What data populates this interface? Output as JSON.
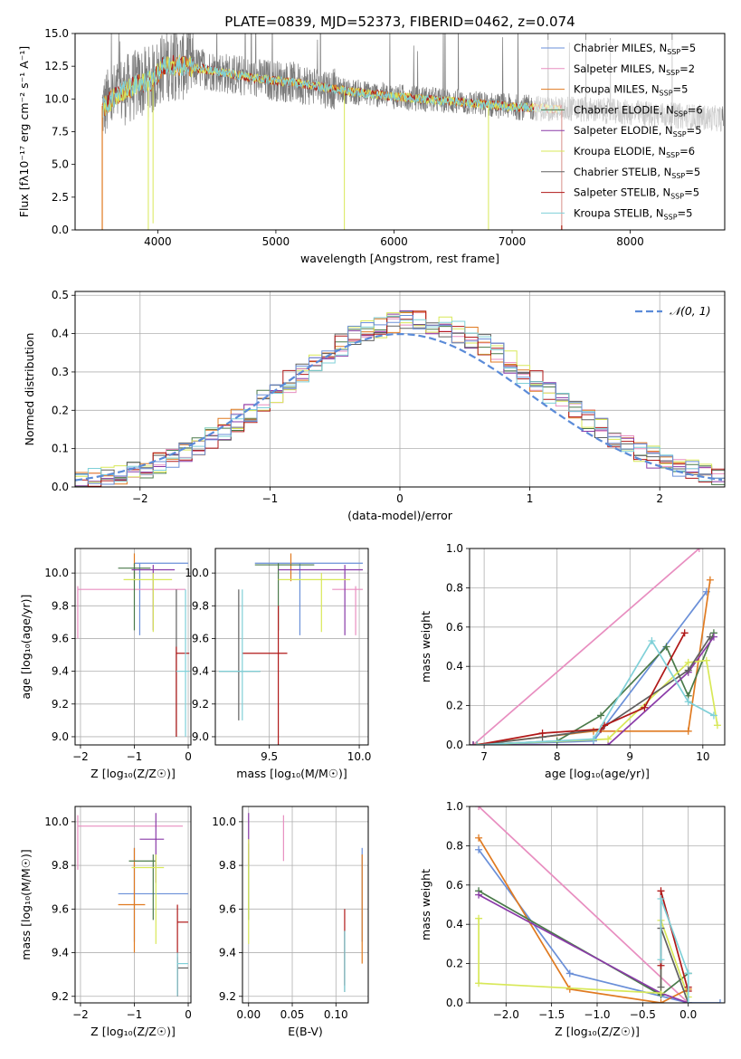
{
  "colors": [
    "#6a8fd8",
    "#e88ec0",
    "#e07a20",
    "#4a7a4a",
    "#8a3aa8",
    "#d8e858",
    "#606060",
    "#b01818",
    "#7fd0d8"
  ],
  "legend": [
    {
      "base": "Chabrier MILES, N",
      "sub": "SSP",
      "tail": "=5"
    },
    {
      "base": "Salpeter MILES, N",
      "sub": "SSP",
      "tail": "=2"
    },
    {
      "base": "Kroupa MILES, N",
      "sub": "SSP",
      "tail": "=5"
    },
    {
      "base": "Chabrier ELODIE, N",
      "sub": "SSP",
      "tail": "=6"
    },
    {
      "base": "Salpeter ELODIE, N",
      "sub": "SSP",
      "tail": "=5"
    },
    {
      "base": "Kroupa ELODIE, N",
      "sub": "SSP",
      "tail": "=6"
    },
    {
      "base": "Chabrier STELIB, N",
      "sub": "SSP",
      "tail": "=5"
    },
    {
      "base": "Salpeter STELIB, N",
      "sub": "SSP",
      "tail": "=5"
    },
    {
      "base": "Kroupa STELIB, N",
      "sub": "SSP",
      "tail": "=5"
    }
  ],
  "chart_data": [
    {
      "id": "spectrum",
      "type": "line",
      "title": "PLATE=0839, MJD=52373, FIBERID=0462, z=0.074",
      "xlabel": "wavelength [Angstrom, rest frame]",
      "ylabel": "Flux [fλ10⁻¹⁷ erg cm⁻² s⁻¹ A⁻¹]",
      "xlim": [
        3300,
        8800
      ],
      "ylim": [
        0,
        15
      ],
      "xticks": [
        4000,
        5000,
        6000,
        7000,
        8000
      ],
      "xticklabels": [
        "4000",
        "5000",
        "6000",
        "7000",
        "8000"
      ],
      "yticks": [
        0,
        2.5,
        5,
        7.5,
        10,
        12.5,
        15
      ],
      "yticklabels": [
        "0.0",
        "2.5",
        "5.0",
        "7.5",
        "10.0",
        "12.5",
        "15.0"
      ],
      "continuum": [
        [
          3530,
          9.3
        ],
        [
          3700,
          10.6
        ],
        [
          3850,
          11.2
        ],
        [
          3950,
          11.4
        ],
        [
          4050,
          12.5
        ],
        [
          4200,
          12.6
        ],
        [
          4500,
          12.1
        ],
        [
          4800,
          11.6
        ],
        [
          5200,
          11.2
        ],
        [
          5600,
          10.6
        ],
        [
          6000,
          10.2
        ],
        [
          6500,
          9.8
        ],
        [
          7000,
          9.4
        ],
        [
          7420,
          9.2
        ]
      ],
      "spikes": [
        [
          3920,
          0
        ],
        [
          3960,
          0.5
        ],
        [
          5580,
          0
        ],
        [
          6800,
          0
        ],
        [
          7420,
          0
        ]
      ],
      "data_range": [
        3530,
        8790
      ]
    },
    {
      "id": "residuals",
      "type": "bar",
      "xlabel": "(data-model)/error",
      "ylabel": "Normed distribution",
      "xlim": [
        -2.5,
        2.5
      ],
      "ylim": [
        0,
        0.51
      ],
      "xticks": [
        -2,
        -1,
        0,
        1,
        2
      ],
      "xticklabels": [
        "−2",
        "−1",
        "0",
        "1",
        "2"
      ],
      "yticks": [
        0,
        0.1,
        0.2,
        0.3,
        0.4,
        0.5
      ],
      "yticklabels": [
        "0.0",
        "0.1",
        "0.2",
        "0.3",
        "0.4",
        "0.5"
      ],
      "bin_width": 0.1,
      "bin_edges_from": -2.5,
      "gaussian": {
        "label": "𝒩(0, 1)",
        "color": "#5b8bd8"
      }
    },
    {
      "id": "age_vs_Z",
      "type": "scatter",
      "xlabel": "Z [log₁₀(Z/Z☉)]",
      "ylabel": "age  [log₁₀(age/yr)]",
      "xlim": [
        -2.1,
        0.05
      ],
      "ylim": [
        8.95,
        10.15
      ],
      "xticks": [
        -2,
        -1,
        0
      ],
      "xticklabels": [
        "−2",
        "−1",
        "0"
      ],
      "yticks": [
        9.0,
        9.2,
        9.4,
        9.6,
        9.8,
        10.0
      ],
      "yticklabels": [
        "9.0",
        "9.2",
        "9.4",
        "9.6",
        "9.8",
        "10.0"
      ],
      "points": [
        {
          "c": 0,
          "x": -0.9,
          "xe": [
            -1.0,
            -0.0
          ],
          "y": 10.06,
          "ye": [
            9.62,
            10.06
          ]
        },
        {
          "c": 1,
          "x": -2.05,
          "xe": [
            -2.05,
            -0.05
          ],
          "y": 9.9,
          "ye": [
            9.6,
            9.92
          ]
        },
        {
          "c": 2,
          "x": -1.0,
          "xe": [
            -1.0,
            -1.0
          ],
          "y": 10.1,
          "ye": [
            9.95,
            10.12
          ]
        },
        {
          "c": 3,
          "x": -1.0,
          "xe": [
            -1.3,
            -0.7
          ],
          "y": 10.03,
          "ye": [
            9.65,
            10.06
          ]
        },
        {
          "c": 4,
          "x": -0.65,
          "xe": [
            -1.05,
            -0.25
          ],
          "y": 10.02,
          "ye": [
            9.65,
            10.05
          ]
        },
        {
          "c": 5,
          "x": -0.65,
          "xe": [
            -1.2,
            -0.3
          ],
          "y": 9.96,
          "ye": [
            9.64,
            10.0
          ]
        },
        {
          "c": 6,
          "x": -0.22,
          "xe": [
            -0.22,
            -0.22
          ],
          "y": 9.45,
          "ye": [
            9.0,
            9.9
          ]
        },
        {
          "c": 7,
          "x": -0.22,
          "xe": [
            -0.22,
            0.02
          ],
          "y": 9.51,
          "ye": [
            9.0,
            9.55
          ]
        },
        {
          "c": 8,
          "x": -0.05,
          "xe": [
            -0.22,
            0.02
          ],
          "y": 9.4,
          "ye": [
            9.0,
            9.9
          ]
        }
      ]
    },
    {
      "id": "age_vs_mass",
      "type": "scatter",
      "xlabel": "mass [log₁₀(M/M☉)]",
      "ylabel": "",
      "xlim": [
        9.2,
        10.05
      ],
      "ylim": [
        8.95,
        10.15
      ],
      "xticks": [
        9.5,
        10.0
      ],
      "xticklabels": [
        "9.5",
        "10.0"
      ],
      "yticks": [
        9.0,
        9.2,
        9.4,
        9.6,
        9.8,
        10.0
      ],
      "yticklabels": [
        "9.0",
        "9.2",
        "9.4",
        "9.6",
        "9.8",
        "10.0"
      ],
      "points": [
        {
          "c": 0,
          "x": 9.67,
          "xe": [
            9.42,
            10.02
          ],
          "y": 10.06,
          "ye": [
            9.62,
            10.06
          ]
        },
        {
          "c": 1,
          "x": 9.98,
          "xe": [
            9.85,
            10.02
          ],
          "y": 9.9,
          "ye": [
            9.62,
            9.92
          ]
        },
        {
          "c": 2,
          "x": 9.62,
          "xe": [
            9.62,
            9.62
          ],
          "y": 10.1,
          "ye": [
            9.95,
            10.12
          ]
        },
        {
          "c": 3,
          "x": 9.55,
          "xe": [
            9.42,
            9.75
          ],
          "y": 10.05,
          "ye": [
            9.65,
            10.06
          ]
        },
        {
          "c": 4,
          "x": 9.92,
          "xe": [
            9.55,
            10.02
          ],
          "y": 10.02,
          "ye": [
            9.62,
            10.05
          ]
        },
        {
          "c": 5,
          "x": 9.79,
          "xe": [
            9.55,
            9.95
          ],
          "y": 9.96,
          "ye": [
            9.64,
            10.0
          ]
        },
        {
          "c": 6,
          "x": 9.33,
          "xe": [
            9.22,
            9.45
          ],
          "y": 9.4,
          "ye": [
            9.1,
            9.9
          ]
        },
        {
          "c": 7,
          "x": 9.55,
          "xe": [
            9.35,
            9.6
          ],
          "y": 9.51,
          "ye": [
            8.95,
            9.8
          ]
        },
        {
          "c": 8,
          "x": 9.35,
          "xe": [
            9.22,
            9.45
          ],
          "y": 9.4,
          "ye": [
            9.1,
            9.9
          ]
        }
      ]
    },
    {
      "id": "massweight_vs_age",
      "type": "line",
      "xlabel": "age  [log₁₀(age/yr)]",
      "ylabel": "mass weight",
      "xlim": [
        6.8,
        10.3
      ],
      "ylim": [
        0,
        1
      ],
      "xticks": [
        7,
        8,
        9,
        10
      ],
      "xticklabels": [
        "7",
        "8",
        "9",
        "10"
      ],
      "yticks": [
        0,
        0.2,
        0.4,
        0.6,
        0.8,
        1.0
      ],
      "yticklabels": [
        "0.0",
        "0.2",
        "0.4",
        "0.6",
        "0.8",
        "1.0"
      ],
      "series": [
        {
          "c": 1,
          "x": [
            6.85,
            9.95
          ],
          "y": [
            0.0,
            1.0
          ]
        },
        {
          "c": 0,
          "x": [
            6.85,
            8.5,
            10.05
          ],
          "y": [
            0.0,
            0.02,
            0.78
          ]
        },
        {
          "c": 2,
          "x": [
            6.85,
            8.5,
            9.8,
            10.1
          ],
          "y": [
            0.0,
            0.07,
            0.07,
            0.84
          ]
        },
        {
          "c": 3,
          "x": [
            6.85,
            8.0,
            8.6,
            9.5,
            9.8,
            10.15
          ],
          "y": [
            0.0,
            0.02,
            0.15,
            0.5,
            0.25,
            0.57
          ]
        },
        {
          "c": 4,
          "x": [
            6.85,
            8.7,
            9.8,
            10.15
          ],
          "y": [
            0.0,
            0.0,
            0.37,
            0.55
          ]
        },
        {
          "c": 5,
          "x": [
            6.9,
            8.7,
            9.8,
            10.05,
            10.2
          ],
          "y": [
            0.0,
            0.03,
            0.42,
            0.43,
            0.1
          ]
        },
        {
          "c": 6,
          "x": [
            6.9,
            7.8,
            8.6,
            9.8,
            10.1
          ],
          "y": [
            0.0,
            0.04,
            0.08,
            0.38,
            0.55
          ]
        },
        {
          "c": 7,
          "x": [
            6.9,
            7.8,
            8.6,
            8.65,
            9.2,
            9.75
          ],
          "y": [
            0.0,
            0.06,
            0.08,
            0.1,
            0.19,
            0.57
          ]
        },
        {
          "c": 8,
          "x": [
            6.9,
            8.5,
            9.3,
            9.8,
            10.15
          ],
          "y": [
            0.0,
            0.03,
            0.53,
            0.22,
            0.15
          ]
        }
      ]
    },
    {
      "id": "mass_vs_Z",
      "type": "scatter",
      "xlabel": "Z [log₁₀(Z/Z☉)]",
      "ylabel": "mass [log₁₀(M/M☉)]",
      "xlim": [
        -2.1,
        0.05
      ],
      "ylim": [
        9.17,
        10.07
      ],
      "xticks": [
        -2,
        -1,
        0
      ],
      "xticklabels": [
        "−2",
        "−1",
        "0"
      ],
      "yticks": [
        9.2,
        9.4,
        9.6,
        9.8,
        10.0
      ],
      "yticklabels": [
        "9.2",
        "9.4",
        "9.6",
        "9.8",
        "10.0"
      ],
      "points": [
        {
          "c": 0,
          "x": -1.0,
          "xe": [
            -1.3,
            0.0
          ],
          "y": 9.67,
          "ye": [
            9.45,
            9.88
          ]
        },
        {
          "c": 1,
          "x": -2.05,
          "xe": [
            -2.05,
            -0.1
          ],
          "y": 9.98,
          "ye": [
            9.78,
            10.03
          ]
        },
        {
          "c": 2,
          "x": -1.0,
          "xe": [
            -1.3,
            -0.8
          ],
          "y": 9.62,
          "ye": [
            9.4,
            9.88
          ]
        },
        {
          "c": 3,
          "x": -0.65,
          "xe": [
            -1.1,
            -0.6
          ],
          "y": 9.82,
          "ye": [
            9.55,
            9.85
          ]
        },
        {
          "c": 4,
          "x": -0.6,
          "xe": [
            -0.9,
            -0.45
          ],
          "y": 9.92,
          "ye": [
            9.72,
            10.04
          ]
        },
        {
          "c": 5,
          "x": -0.6,
          "xe": [
            -1.05,
            -0.45
          ],
          "y": 9.79,
          "ye": [
            9.44,
            9.85
          ]
        },
        {
          "c": 6,
          "x": -0.2,
          "xe": [
            -0.2,
            0.0
          ],
          "y": 9.33,
          "ye": [
            9.2,
            9.38
          ]
        },
        {
          "c": 7,
          "x": -0.2,
          "xe": [
            -0.2,
            0.0
          ],
          "y": 9.54,
          "ye": [
            9.2,
            9.62
          ]
        },
        {
          "c": 8,
          "x": -0.2,
          "xe": [
            -0.2,
            0.0
          ],
          "y": 9.35,
          "ye": [
            9.2,
            9.4
          ]
        }
      ]
    },
    {
      "id": "mass_vs_EBV",
      "type": "scatter",
      "xlabel": "E(B-V)",
      "ylabel": "",
      "xlim": [
        -0.007,
        0.137
      ],
      "ylim": [
        9.17,
        10.07
      ],
      "xticks": [
        0.0,
        0.05,
        0.1
      ],
      "xticklabels": [
        "0.00",
        "0.05",
        "0.10"
      ],
      "yticks": [
        9.2,
        9.4,
        9.6,
        9.8,
        10.0
      ],
      "yticklabels": [
        "9.2",
        "9.4",
        "9.6",
        "9.8",
        "10.0"
      ],
      "points": [
        {
          "c": 0,
          "x": 0.13,
          "xe": [
            0.13,
            0.13
          ],
          "y": 9.67,
          "ye": [
            9.45,
            9.88
          ]
        },
        {
          "c": 1,
          "x": 0.04,
          "xe": [
            0.04,
            0.04
          ],
          "y": 9.98,
          "ye": [
            9.82,
            10.03
          ]
        },
        {
          "c": 2,
          "x": 0.13,
          "xe": [
            0.13,
            0.13
          ],
          "y": 9.62,
          "ye": [
            9.35,
            9.85
          ]
        },
        {
          "c": 3,
          "x": 0.0,
          "xe": [
            0.0,
            0.0
          ],
          "y": 9.82,
          "ye": [
            9.55,
            9.9
          ]
        },
        {
          "c": 4,
          "x": 0.0,
          "xe": [
            0.0,
            0.0
          ],
          "y": 9.92,
          "ye": [
            9.8,
            10.04
          ]
        },
        {
          "c": 5,
          "x": 0.0,
          "xe": [
            0.0,
            0.0
          ],
          "y": 9.79,
          "ye": [
            9.44,
            9.92
          ]
        },
        {
          "c": 6,
          "x": 0.11,
          "xe": [
            0.11,
            0.11
          ],
          "y": 9.33,
          "ye": [
            9.22,
            9.5
          ]
        },
        {
          "c": 7,
          "x": 0.11,
          "xe": [
            0.11,
            0.11
          ],
          "y": 9.54,
          "ye": [
            9.25,
            9.6
          ]
        },
        {
          "c": 8,
          "x": 0.11,
          "xe": [
            0.11,
            0.11
          ],
          "y": 9.35,
          "ye": [
            9.22,
            9.5
          ]
        }
      ]
    },
    {
      "id": "massweight_vs_Z",
      "type": "line",
      "xlabel": "Z [log₁₀(Z/Z☉)]",
      "ylabel": "mass weight",
      "xlim": [
        -2.4,
        0.4
      ],
      "ylim": [
        0,
        1
      ],
      "xticks": [
        -2.0,
        -1.5,
        -1.0,
        -0.5,
        0.0
      ],
      "xticklabels": [
        "−2.0",
        "−1.5",
        "−1.0",
        "−0.5",
        "0.0"
      ],
      "yticks": [
        0,
        0.2,
        0.4,
        0.6,
        0.8,
        1.0
      ],
      "yticklabels": [
        "0.0",
        "0.2",
        "0.4",
        "0.6",
        "0.8",
        "1.0"
      ],
      "series": [
        {
          "c": 1,
          "x": [
            -2.3,
            0.0
          ],
          "y": [
            1.0,
            0.0
          ]
        },
        {
          "c": 0,
          "x": [
            -2.3,
            -1.3,
            0.0,
            0.35
          ],
          "y": [
            0.78,
            0.15,
            0.0,
            0.0
          ]
        },
        {
          "c": 2,
          "x": [
            -2.3,
            -1.3,
            -0.3,
            0.0
          ],
          "y": [
            0.84,
            0.07,
            0.0,
            0.07
          ]
        },
        {
          "c": 3,
          "x": [
            -2.3,
            -0.3,
            0.0
          ],
          "y": [
            0.57,
            0.04,
            0.15
          ]
        },
        {
          "c": 4,
          "x": [
            -2.3,
            -0.3,
            0.0
          ],
          "y": [
            0.55,
            0.05,
            0.0
          ]
        },
        {
          "c": 5,
          "x": [
            -2.3,
            -2.3,
            -0.3,
            -0.3,
            0.0
          ],
          "y": [
            0.43,
            0.1,
            0.05,
            0.42,
            0.03
          ]
        },
        {
          "c": 6,
          "x": [
            -0.3,
            -0.3,
            0.0
          ],
          "y": [
            0.08,
            0.38,
            0.0
          ]
        },
        {
          "c": 7,
          "x": [
            -0.3,
            -0.3,
            0.0,
            0.0
          ],
          "y": [
            0.19,
            0.57,
            0.06,
            0.08
          ]
        },
        {
          "c": 8,
          "x": [
            -0.3,
            -0.3,
            0.0,
            0.0
          ],
          "y": [
            0.22,
            0.53,
            0.15,
            0.0
          ]
        }
      ]
    }
  ]
}
